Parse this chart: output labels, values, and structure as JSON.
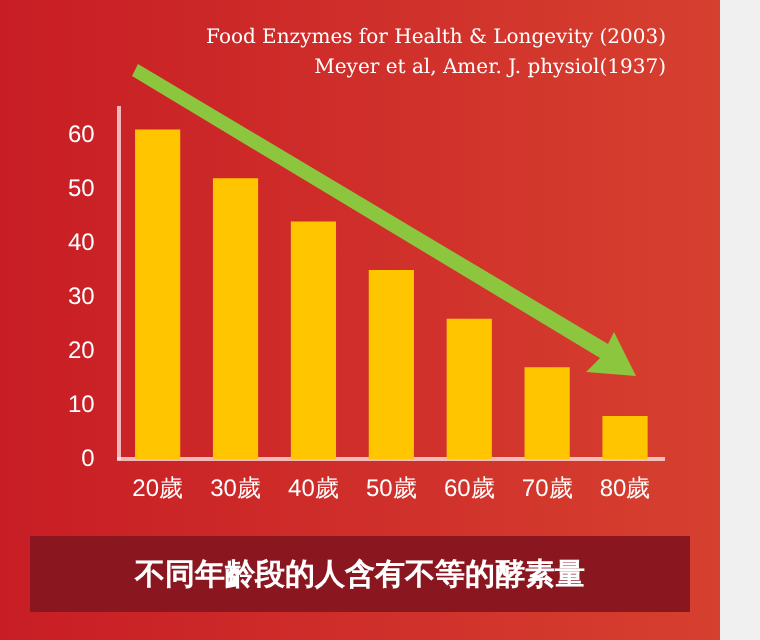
{
  "chart_data": {
    "type": "bar",
    "title": "不同年齡段的人含有不等的酵素量",
    "categories": [
      "20歲",
      "30歲",
      "40歲",
      "50歲",
      "60歲",
      "70歲",
      "80歲"
    ],
    "values": [
      61,
      52,
      44,
      35,
      26,
      17,
      8
    ],
    "color": "#ffc600",
    "ylim": [
      0,
      65
    ],
    "yticks": [
      0,
      10,
      20,
      30,
      40,
      50,
      60
    ],
    "grid": false,
    "legend": false,
    "annotations": [
      "Food Enzymes for Health & Longevity (2003)",
      "Meyer et al, Amer. J. physiol(1937)"
    ]
  }
}
